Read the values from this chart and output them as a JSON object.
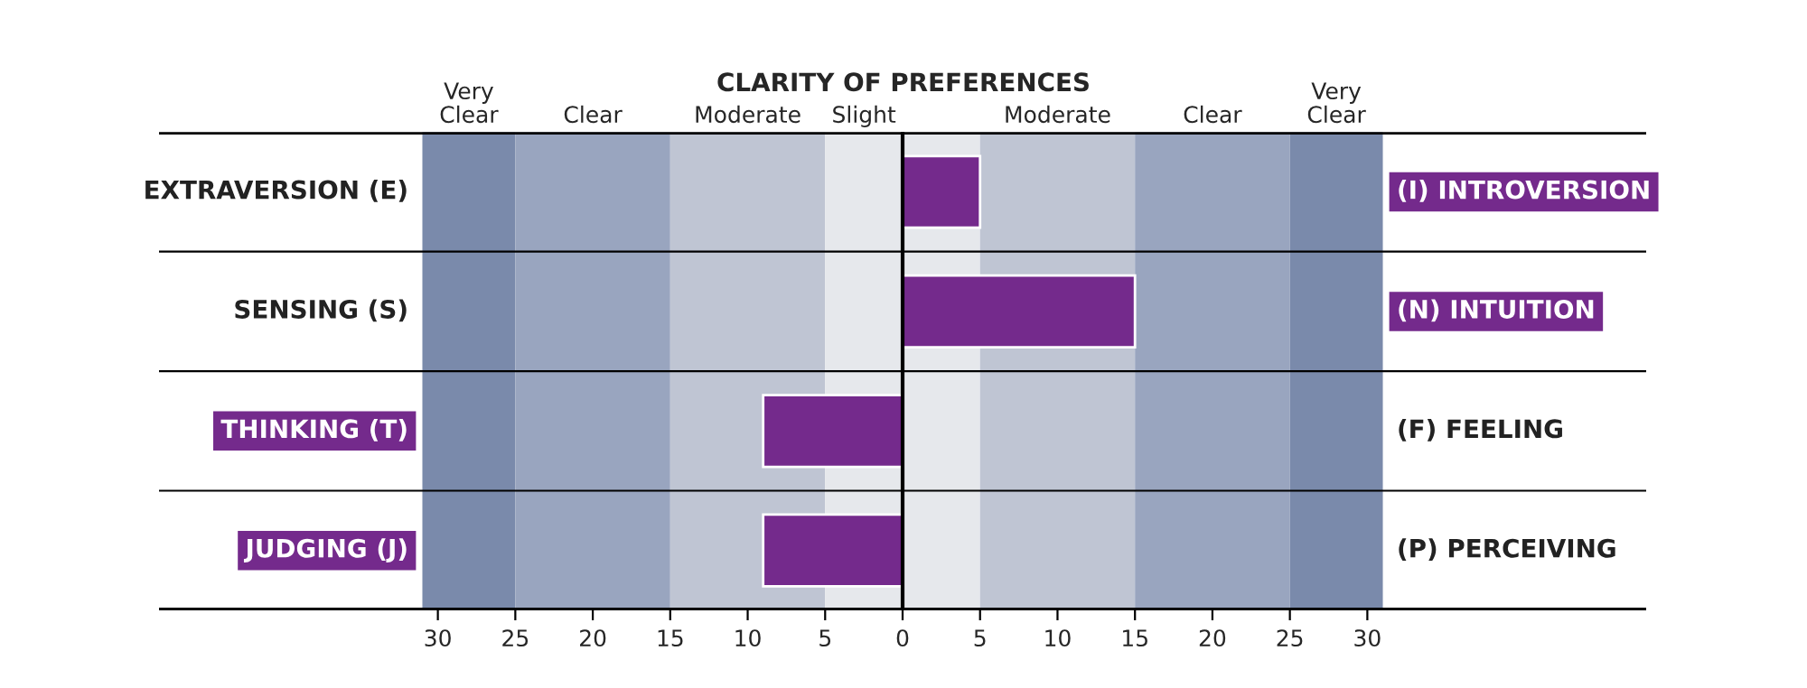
{
  "chart_data": {
    "type": "bar",
    "orientation": "horizontal",
    "title": "CLARITY OF PREFERENCES",
    "categories": [
      "EXTRAVERSION (E)",
      "SENSING (S)",
      "THINKING (T)",
      "JUDGING (J)"
    ],
    "y2_categories": [
      "(I) INTROVERSION",
      "(N) INTUITION",
      "(F) FEELING",
      "(P) PERCEIVING"
    ],
    "values": [
      5,
      15,
      -9,
      -9
    ],
    "color": "#742a8c",
    "xlim": [
      -48,
      48
    ],
    "xticks": [
      {
        "value": -30,
        "label": "30"
      },
      {
        "value": -25,
        "label": "25"
      },
      {
        "value": -20,
        "label": "20"
      },
      {
        "value": -15,
        "label": "15"
      },
      {
        "value": -10,
        "label": "10"
      },
      {
        "value": -5,
        "label": "5"
      },
      0,
      5,
      10,
      15,
      20,
      25,
      30
    ],
    "bands": [
      {
        "axis": "x",
        "from": -31,
        "to": -25,
        "label": "Very\nClear",
        "color": "#7a8aab"
      },
      {
        "axis": "x",
        "from": -25,
        "to": -15,
        "label": "Clear",
        "color": "#99a5bf"
      },
      {
        "axis": "x",
        "from": -15,
        "to": -5,
        "label": "Moderate",
        "color": "#bfc5d3"
      },
      {
        "axis": "x",
        "from": -5,
        "to": 0,
        "label": "Slight",
        "color": "#e6e8ec"
      },
      {
        "axis": "x",
        "from": 0,
        "to": 5,
        "color": "#e6e8ec"
      },
      {
        "axis": "x",
        "from": 5,
        "to": 15,
        "label": "Moderate",
        "color": "#bfc5d3"
      },
      {
        "axis": "x",
        "from": 15,
        "to": 25,
        "label": "Clear",
        "color": "#99a5bf"
      },
      {
        "axis": "x",
        "from": 25,
        "to": 31,
        "label": "Very\nClear",
        "color": "#7a8aab"
      }
    ],
    "ref_lines": [
      {
        "axis": "x",
        "value": 0,
        "color": "#000000"
      }
    ],
    "grid": false
  }
}
